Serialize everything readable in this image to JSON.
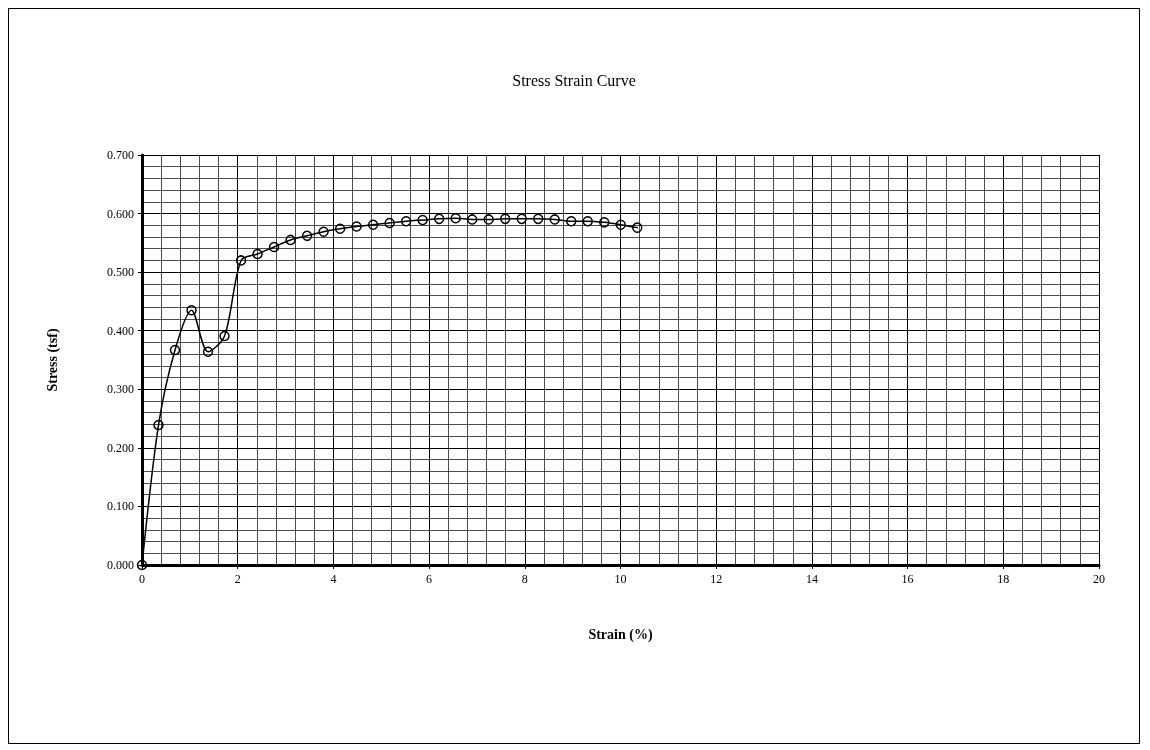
{
  "chart_data": {
    "type": "line",
    "title": "Stress Strain Curve",
    "xlabel": "Strain (%)",
    "ylabel": "Stress (tsf)",
    "x": [
      0,
      0.345,
      0.69,
      1.035,
      1.38,
      1.725,
      2.07,
      2.415,
      2.76,
      3.105,
      3.45,
      3.795,
      4.14,
      4.485,
      4.83,
      5.175,
      5.52,
      5.865,
      6.21,
      6.555,
      6.9,
      7.245,
      7.59,
      7.935,
      8.28,
      8.625,
      8.97,
      9.315,
      9.66,
      10.005,
      10.35
    ],
    "series": [
      {
        "color": "#000000",
        "values": [
          0,
          0.239,
          0.367,
          0.435,
          0.364,
          0.391,
          0.52,
          0.531,
          0.543,
          0.555,
          0.562,
          0.569,
          0.574,
          0.578,
          0.581,
          0.584,
          0.587,
          0.589,
          0.591,
          0.592,
          0.59,
          0.59,
          0.591,
          0.591,
          0.591,
          0.59,
          0.587,
          0.587,
          0.585,
          0.581,
          0.576
        ]
      }
    ],
    "xlim": [
      0,
      20
    ],
    "xticks": [
      0,
      2,
      4,
      6,
      8,
      10,
      12,
      14,
      16,
      18,
      20
    ],
    "ylim": [
      0,
      0.7
    ],
    "yticks": [
      {
        "value": 0,
        "label": "0.000"
      },
      {
        "value": 0.1,
        "label": "0.100"
      },
      {
        "value": 0.2,
        "label": "0.200"
      },
      {
        "value": 0.3,
        "label": "0.300"
      },
      {
        "value": 0.4,
        "label": "0.400"
      },
      {
        "value": 0.5,
        "label": "0.500"
      },
      {
        "value": 0.6,
        "label": "0.600"
      },
      {
        "value": 0.7,
        "label": "0.700"
      }
    ],
    "grid": true,
    "marker": "circle",
    "line_style": "solid"
  }
}
